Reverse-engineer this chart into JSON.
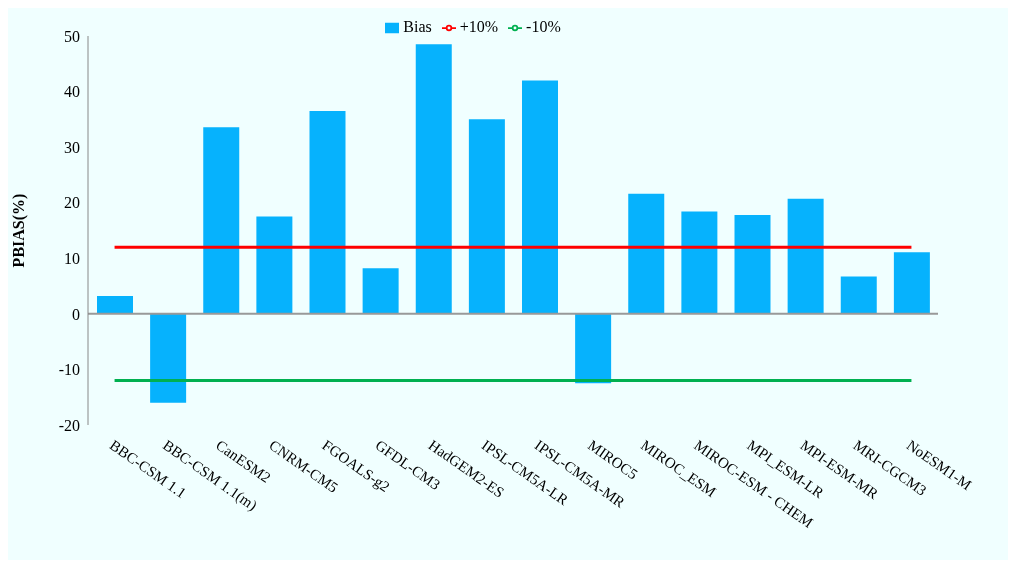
{
  "chart_data": {
    "type": "bar",
    "ylabel": "PBIAS(%)",
    "categories": [
      "BBC-CSM 1.1",
      "BBC-CSM 1.1(m)",
      "CanESM2",
      "CNRM-CM5",
      "FGOALS-g2",
      "GFDL-CM3",
      "HadGEM2-ES",
      "IPSL-CM5A-LR",
      "IPSL-CM5A-MR",
      "MIROC5",
      "MIROC_ESM",
      "MIROC-ESM - CHEM",
      "MPI_ESM-LR",
      "MPI-ESM-MR",
      "MRI-CGCM3",
      "NoESM1-M"
    ],
    "series": [
      {
        "name": "Bias",
        "color": "#06b2fd",
        "values": [
          3.2,
          -16.0,
          33.6,
          17.5,
          36.5,
          8.2,
          48.5,
          35.0,
          42.0,
          -12.5,
          21.6,
          18.4,
          17.8,
          20.7,
          6.7,
          11.1
        ]
      },
      {
        "name": "+10%",
        "type": "line",
        "color": "#ff0000",
        "values": [
          12,
          12,
          12,
          12,
          12,
          12,
          12,
          12,
          12,
          12,
          12,
          12,
          12,
          12,
          12,
          12
        ]
      },
      {
        "name": "-10%",
        "type": "line",
        "color": "#00b050",
        "values": [
          -12,
          -12,
          -12,
          -12,
          -12,
          -12,
          -12,
          -12,
          -12,
          -12,
          -12,
          -12,
          -12,
          -12,
          -12,
          -12
        ]
      }
    ],
    "ylim": [
      -20,
      50
    ],
    "yticks": [
      -20,
      -10,
      0,
      10,
      20,
      30,
      40,
      50
    ],
    "legend": "top",
    "marker": "none"
  }
}
